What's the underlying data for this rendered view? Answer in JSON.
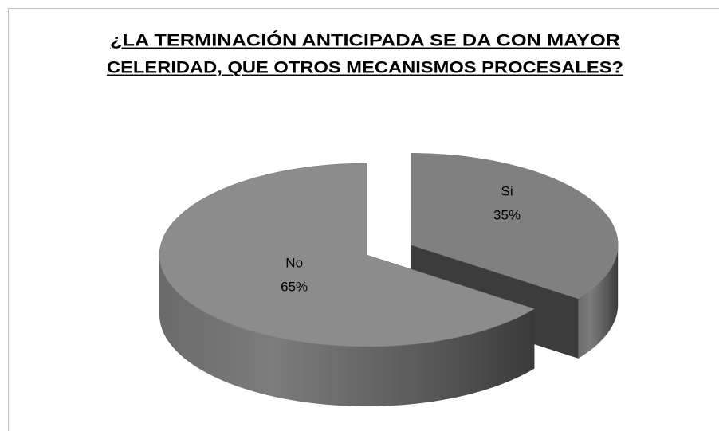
{
  "chart_data": {
    "type": "pie",
    "title": [
      "¿LA TERMINACIÓN ANTICIPADA SE DA CON MAYOR",
      "CELERIDAD, QUE OTROS MECANISMOS PROCESALES?"
    ],
    "categories": [
      "Si",
      "No"
    ],
    "values": [
      35,
      65
    ],
    "value_labels": [
      "35%",
      "65%"
    ],
    "colors": [
      "#808080",
      "#8c8c8c"
    ]
  }
}
